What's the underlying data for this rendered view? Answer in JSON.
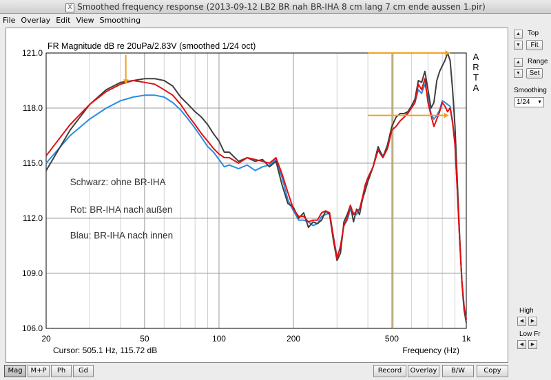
{
  "window": {
    "title": "Smoothed frequency response (2013-09-12 LB2 BR nah BR-IHA  8 cm lang 7 cm ende aussen 1.pir)"
  },
  "menu": [
    "File",
    "Overlay",
    "Edit",
    "View",
    "Smoothing"
  ],
  "side": {
    "top_label": "Top",
    "fit_label": "Fit",
    "range_label": "Range",
    "set_label": "Set",
    "smoothing_label": "Smoothing",
    "smoothing_value": "1/24",
    "high_label": "High",
    "lowfr_label": "Low Fr"
  },
  "bottom": {
    "mag": "Mag",
    "mp": "M+P",
    "ph": "Ph",
    "gd": "Gd",
    "record": "Record",
    "overlay": "Overlay",
    "bw": "B/W",
    "copy": "Copy"
  },
  "chart_data": {
    "type": "line",
    "title": "FR Magnitude dB re 20uPa/2.83V (smoothed 1/24 oct)",
    "xlabel": "Frequency (Hz)",
    "cursor_text": "Cursor: 505.1 Hz, 115.72 dB",
    "brand": [
      "A",
      "R",
      "T",
      "A"
    ],
    "x_scale": "log",
    "xlim": [
      20,
      1000
    ],
    "ylim": [
      106,
      121
    ],
    "x_ticks": [
      {
        "v": 20,
        "label": "20"
      },
      {
        "v": 50,
        "label": "50"
      },
      {
        "v": 100,
        "label": "100"
      },
      {
        "v": 200,
        "label": "200"
      },
      {
        "v": 500,
        "label": "500"
      },
      {
        "v": 1000,
        "label": "1k"
      }
    ],
    "y_ticks": [
      {
        "v": 106,
        "label": "106.0"
      },
      {
        "v": 109,
        "label": "109.0"
      },
      {
        "v": 112,
        "label": "112.0"
      },
      {
        "v": 115,
        "label": "115.0"
      },
      {
        "v": 118,
        "label": "118.0"
      },
      {
        "v": 121,
        "label": "121.0"
      }
    ],
    "grid": true,
    "annotations": [
      {
        "name": "legend-schwarz",
        "text": "Schwarz: ohne BR-IHA",
        "x": 25,
        "y": 113.8
      },
      {
        "name": "legend-rot",
        "text": "Rot: BR-IHA nach außen",
        "x": 25,
        "y": 112.3
      },
      {
        "name": "legend-blau",
        "text": "Blau: BR-IHA nach innen",
        "x": 25,
        "y": 110.9
      }
    ],
    "markers": {
      "cursor_x": 505.1,
      "arrow_down": {
        "x": 42,
        "y_from": 120.9,
        "y_to": 119.3
      },
      "arrow_top": {
        "x_from": 400,
        "x_to": 860,
        "y": 121.0
      },
      "arrow_mid": {
        "x_from": 400,
        "x_to": 850,
        "y": 117.6
      }
    },
    "series": [
      {
        "color": "#3f3f3f",
        "x": [
          20,
          25,
          30,
          35,
          40,
          45,
          50,
          55,
          60,
          65,
          70,
          75,
          80,
          85,
          90,
          95,
          100,
          105,
          110,
          120,
          130,
          140,
          150,
          160,
          170,
          180,
          190,
          200,
          210,
          220,
          230,
          240,
          250,
          260,
          270,
          280,
          290,
          300,
          310,
          320,
          330,
          340,
          350,
          360,
          370,
          380,
          390,
          400,
          420,
          440,
          460,
          480,
          500,
          520,
          540,
          560,
          580,
          600,
          620,
          640,
          660,
          680,
          700,
          720,
          740,
          760,
          780,
          800,
          820,
          840,
          860,
          880,
          900,
          920,
          940,
          960,
          980,
          1000
        ],
        "y": [
          114.6,
          116.8,
          118.2,
          119.0,
          119.4,
          119.5,
          119.6,
          119.6,
          119.5,
          119.2,
          118.6,
          118.2,
          117.8,
          117.5,
          117.1,
          116.6,
          116.2,
          115.6,
          115.6,
          115.1,
          115.3,
          115.1,
          115.2,
          114.8,
          115.1,
          113.8,
          112.8,
          112.6,
          112.0,
          112.3,
          111.5,
          111.8,
          111.7,
          111.9,
          112.4,
          112.2,
          110.8,
          109.7,
          110.1,
          111.8,
          112.2,
          112.7,
          111.8,
          112.5,
          112.2,
          113.0,
          113.5,
          114.0,
          114.8,
          115.9,
          115.3,
          116.0,
          117.0,
          117.5,
          117.7,
          117.7,
          117.8,
          118.1,
          118.5,
          119.5,
          119.4,
          120.0,
          119.0,
          118.0,
          118.3,
          119.5,
          120.0,
          120.3,
          120.6,
          121.0,
          120.6,
          119.0,
          117.0,
          114.0,
          111.0,
          108.5,
          107.0,
          106.3
        ]
      },
      {
        "color": "#e31010",
        "x": [
          20,
          25,
          30,
          35,
          40,
          45,
          50,
          55,
          60,
          65,
          70,
          75,
          80,
          85,
          90,
          95,
          100,
          105,
          110,
          120,
          130,
          140,
          150,
          160,
          170,
          180,
          190,
          200,
          210,
          220,
          230,
          240,
          250,
          260,
          270,
          280,
          290,
          300,
          310,
          320,
          330,
          340,
          350,
          360,
          370,
          380,
          390,
          400,
          420,
          440,
          460,
          480,
          500,
          520,
          540,
          560,
          580,
          600,
          620,
          640,
          660,
          680,
          700,
          720,
          740,
          760,
          780,
          800,
          820,
          840,
          860,
          880,
          900,
          920,
          940,
          960,
          980,
          1000
        ],
        "y": [
          115.4,
          117.1,
          118.2,
          118.9,
          119.3,
          119.5,
          119.4,
          119.3,
          119.0,
          118.7,
          118.2,
          117.6,
          117.1,
          116.6,
          116.2,
          115.8,
          115.5,
          115.3,
          115.3,
          115.0,
          115.3,
          115.2,
          115.1,
          115.0,
          115.3,
          114.4,
          113.4,
          112.5,
          112.1,
          112.1,
          111.8,
          111.9,
          111.9,
          112.3,
          112.4,
          112.3,
          111.0,
          109.8,
          110.5,
          111.6,
          112.0,
          112.7,
          112.2,
          112.4,
          112.5,
          113.1,
          113.8,
          114.2,
          114.8,
          115.7,
          115.3,
          115.8,
          116.8,
          117.0,
          117.3,
          117.5,
          117.7,
          118.0,
          118.3,
          119.3,
          119.0,
          119.6,
          118.3,
          117.6,
          117.0,
          117.4,
          117.8,
          118.3,
          118.1,
          117.8,
          118.0,
          117.2,
          116.0,
          113.5,
          110.8,
          108.6,
          107.2,
          106.5
        ]
      },
      {
        "color": "#2a8be0",
        "x": [
          20,
          25,
          30,
          35,
          40,
          45,
          50,
          55,
          60,
          65,
          70,
          75,
          80,
          85,
          90,
          95,
          100,
          105,
          110,
          120,
          130,
          140,
          150,
          160,
          170,
          180,
          190,
          200,
          210,
          220,
          230,
          240,
          250,
          260,
          270,
          280,
          290,
          300,
          310,
          320,
          330,
          340,
          350,
          360,
          370,
          380,
          390,
          400,
          420,
          440,
          460,
          480,
          500,
          520,
          540,
          560,
          580,
          600,
          620,
          640,
          660,
          680,
          700,
          720,
          740,
          760,
          780,
          800,
          820,
          840,
          860,
          880,
          900,
          920,
          940,
          960,
          980,
          1000
        ],
        "y": [
          115.0,
          116.5,
          117.4,
          118.0,
          118.4,
          118.6,
          118.7,
          118.7,
          118.6,
          118.3,
          117.9,
          117.4,
          116.9,
          116.4,
          115.9,
          115.6,
          115.2,
          114.8,
          114.9,
          114.7,
          114.9,
          114.6,
          114.8,
          114.9,
          115.2,
          114.2,
          113.0,
          112.4,
          111.9,
          111.9,
          111.8,
          111.6,
          111.7,
          112.1,
          112.2,
          112.3,
          111.0,
          109.9,
          110.4,
          111.6,
          111.9,
          112.5,
          112.3,
          112.2,
          112.5,
          113.0,
          113.8,
          114.2,
          114.8,
          115.8,
          115.4,
          115.8,
          116.8,
          117.0,
          117.3,
          117.5,
          117.8,
          118.0,
          118.3,
          119.0,
          118.8,
          119.3,
          118.6,
          117.7,
          117.4,
          117.6,
          117.9,
          118.4,
          118.3,
          118.2,
          118.1,
          117.3,
          116.0,
          113.5,
          110.8,
          108.6,
          107.2,
          106.5
        ]
      }
    ]
  }
}
